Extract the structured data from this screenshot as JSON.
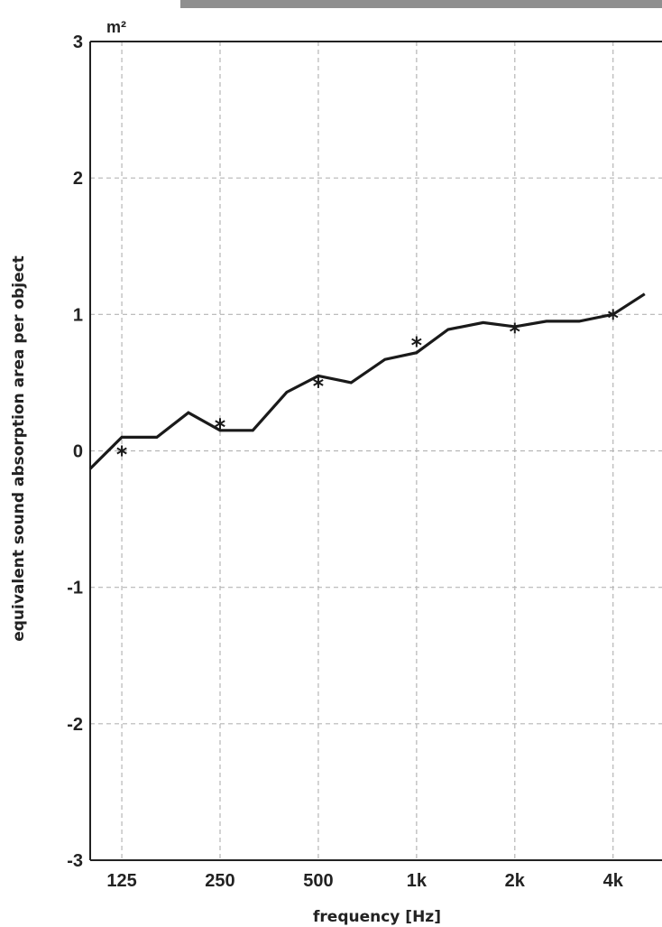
{
  "chart_data": {
    "type": "line",
    "xlabel": "frequency [Hz]",
    "ylabel": "equivalent sound absorption area per object",
    "unit": "m²",
    "x_scale": "log (third-octave bands)",
    "x_ticks": [
      "125",
      "250",
      "500",
      "1k",
      "2k",
      "4k"
    ],
    "y_ticks": [
      "3",
      "2",
      "1",
      "0",
      "-1",
      "-2",
      "-3"
    ],
    "ylim": [
      -3,
      3
    ],
    "grid": true,
    "colors": {
      "line": "#1a1a1a",
      "grid": "#b5b5b5",
      "axis": "#222222",
      "banner": "#8f8f8f"
    },
    "series": [
      {
        "style": "line",
        "x": [
          100,
          125,
          160,
          200,
          250,
          315,
          400,
          500,
          630,
          800,
          1000,
          1250,
          1600,
          2000,
          2500,
          3150,
          4000,
          5000
        ],
        "values": [
          -0.13,
          0.1,
          0.1,
          0.28,
          0.15,
          0.15,
          0.43,
          0.55,
          0.5,
          0.67,
          0.72,
          0.89,
          0.94,
          0.91,
          0.95,
          0.95,
          1.0,
          1.15
        ]
      },
      {
        "style": "markers",
        "marker": "asterisk",
        "x": [
          125,
          250,
          500,
          1000,
          2000,
          4000
        ],
        "values": [
          0.0,
          0.2,
          0.5,
          0.8,
          0.9,
          1.0
        ]
      }
    ]
  }
}
